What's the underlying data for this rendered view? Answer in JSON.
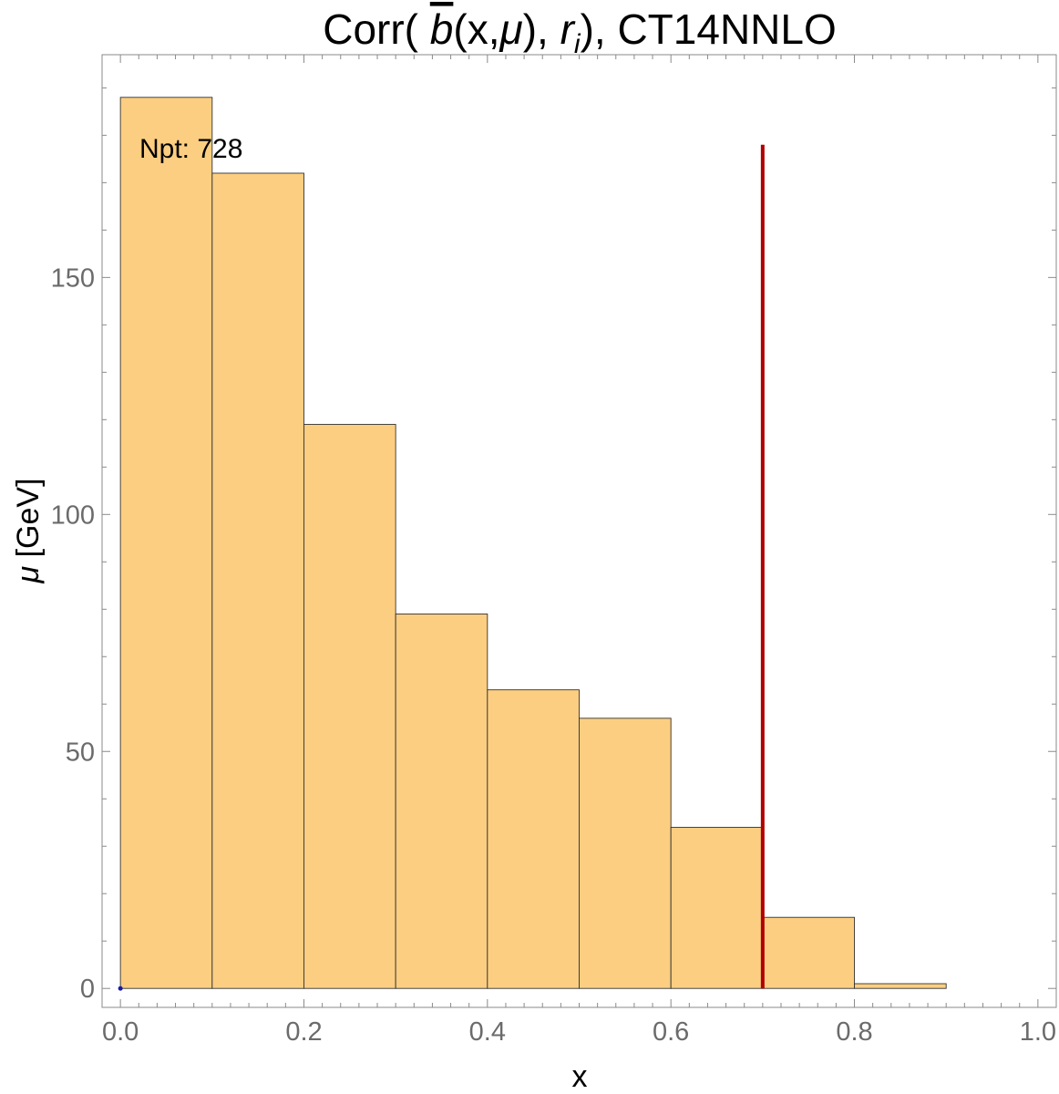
{
  "chart_data": {
    "type": "bar",
    "title": "Corr( b̄(x,μ), rᵢ), CT14NNLO",
    "title_parts": {
      "prefix": "Corr( ",
      "barred_symbol": "b",
      "args": "(x,",
      "mu": "μ",
      "close": "), ",
      "r": "r",
      "r_sub": "i",
      "suffix": "), CT14NNLO"
    },
    "xlabel": "x",
    "ylabel": "μ [GeV]",
    "ylabel_parts": {
      "symbol": "μ",
      "unit": " [GeV]"
    },
    "xlim": [
      -0.02,
      1.02
    ],
    "ylim": [
      -4,
      197
    ],
    "x_ticks": [
      {
        "value": 0.0,
        "label": "0.0"
      },
      {
        "value": 0.2,
        "label": "0.2"
      },
      {
        "value": 0.4,
        "label": "0.4"
      },
      {
        "value": 0.6,
        "label": "0.6"
      },
      {
        "value": 0.8,
        "label": "0.8"
      },
      {
        "value": 1.0,
        "label": "1.0"
      }
    ],
    "y_ticks": [
      {
        "value": 0,
        "label": "0"
      },
      {
        "value": 50,
        "label": "50"
      },
      {
        "value": 100,
        "label": "100"
      },
      {
        "value": 150,
        "label": "150"
      }
    ],
    "bins": [
      {
        "x0": 0.0,
        "x1": 0.1,
        "value": 188
      },
      {
        "x0": 0.1,
        "x1": 0.2,
        "value": 172
      },
      {
        "x0": 0.2,
        "x1": 0.3,
        "value": 119
      },
      {
        "x0": 0.3,
        "x1": 0.4,
        "value": 79
      },
      {
        "x0": 0.4,
        "x1": 0.5,
        "value": 63
      },
      {
        "x0": 0.5,
        "x1": 0.6,
        "value": 57
      },
      {
        "x0": 0.6,
        "x1": 0.7,
        "value": 34
      },
      {
        "x0": 0.7,
        "x1": 0.8,
        "value": 15
      },
      {
        "x0": 0.8,
        "x1": 0.9,
        "value": 1
      }
    ],
    "reference_line": {
      "x": 0.7,
      "y_from": 0,
      "y_to": 178
    },
    "points": [
      {
        "x": 0.0,
        "y": 0.0
      }
    ],
    "annotation": "Npt: 728",
    "bar_color": "#fcce81",
    "bar_edge_color": "#333333",
    "line_color": "#b10000",
    "point_color": "#1a1aa6",
    "grid": false
  }
}
